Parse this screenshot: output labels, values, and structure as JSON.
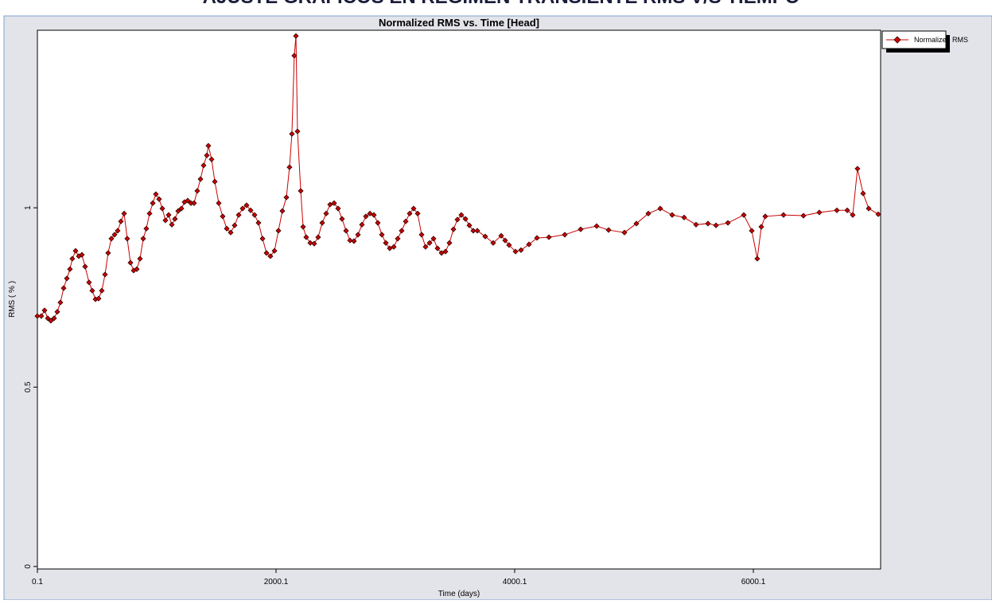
{
  "heading": "AJUSTE GRÁFICOS EN RÉGIMEN TRANSIENTE RMS V/S TIEMPO",
  "chart_data": {
    "type": "line",
    "title": "Normalized RMS vs. Time [Head]",
    "x_label": "Time (days)",
    "y_label": "RMS ( % )",
    "xlim": [
      0.1,
      7066.8
    ],
    "xticks": [
      0.1,
      2000.1,
      4000.1,
      6000.1
    ],
    "ylim": [
      -0.007,
      1.495
    ],
    "yticks": [
      0,
      0.5,
      1
    ],
    "legend": "top-right",
    "markers": true,
    "x": [
      0,
      33,
      60,
      87,
      113,
      140,
      167,
      193,
      220,
      247,
      273,
      293,
      320,
      347,
      373,
      400,
      433,
      460,
      487,
      513,
      540,
      567,
      593,
      620,
      647,
      673,
      700,
      727,
      753,
      780,
      807,
      833,
      860,
      887,
      913,
      940,
      967,
      993,
      1020,
      1047,
      1073,
      1100,
      1127,
      1153,
      1180,
      1207,
      1233,
      1260,
      1287,
      1313,
      1340,
      1367,
      1393,
      1420,
      1433,
      1460,
      1487,
      1520,
      1553,
      1587,
      1620,
      1653,
      1687,
      1720,
      1753,
      1787,
      1820,
      1853,
      1887,
      1920,
      1953,
      1987,
      2020,
      2053,
      2087,
      2113,
      2133,
      2153,
      2167,
      2180,
      2207,
      2227,
      2253,
      2287,
      2320,
      2353,
      2387,
      2420,
      2453,
      2487,
      2520,
      2553,
      2587,
      2620,
      2653,
      2687,
      2720,
      2753,
      2787,
      2820,
      2853,
      2887,
      2920,
      2953,
      2987,
      3020,
      3053,
      3087,
      3120,
      3153,
      3187,
      3220,
      3253,
      3287,
      3320,
      3353,
      3387,
      3420,
      3453,
      3487,
      3520,
      3553,
      3587,
      3620,
      3653,
      3687,
      3753,
      3820,
      3887,
      3920,
      3953,
      4007,
      4053,
      4120,
      4187,
      4287,
      4420,
      4553,
      4687,
      4787,
      4920,
      5020,
      5120,
      5220,
      5320,
      5420,
      5520,
      5620,
      5687,
      5787,
      5920,
      5987,
      6033,
      6067,
      6100,
      6253,
      6420,
      6553,
      6700,
      6787,
      6833,
      6873,
      6920,
      6967,
      7047
    ],
    "series": [
      {
        "name": "Normalized RMS",
        "color": "#cc0000",
        "values": [
          0.698,
          0.698,
          0.714,
          0.692,
          0.685,
          0.692,
          0.71,
          0.736,
          0.776,
          0.803,
          0.829,
          0.858,
          0.88,
          0.865,
          0.869,
          0.836,
          0.792,
          0.769,
          0.745,
          0.747,
          0.769,
          0.814,
          0.874,
          0.914,
          0.925,
          0.936,
          0.962,
          0.984,
          0.914,
          0.847,
          0.825,
          0.829,
          0.858,
          0.914,
          0.942,
          0.984,
          1.013,
          1.038,
          1.024,
          0.998,
          0.965,
          0.98,
          0.953,
          0.969,
          0.991,
          0.998,
          1.016,
          1.02,
          1.013,
          1.013,
          1.047,
          1.08,
          1.118,
          1.146,
          1.173,
          1.135,
          1.073,
          1.013,
          0.976,
          0.942,
          0.931,
          0.951,
          0.98,
          0.998,
          1.007,
          0.993,
          0.98,
          0.958,
          0.914,
          0.874,
          0.865,
          0.88,
          0.936,
          0.991,
          1.029,
          1.113,
          1.206,
          1.424,
          1.479,
          1.213,
          1.047,
          0.947,
          0.918,
          0.902,
          0.9,
          0.918,
          0.958,
          0.984,
          1.009,
          1.013,
          0.998,
          0.969,
          0.936,
          0.909,
          0.907,
          0.925,
          0.953,
          0.976,
          0.984,
          0.98,
          0.958,
          0.925,
          0.902,
          0.887,
          0.891,
          0.914,
          0.936,
          0.962,
          0.984,
          0.998,
          0.984,
          0.925,
          0.891,
          0.902,
          0.914,
          0.887,
          0.874,
          0.878,
          0.902,
          0.94,
          0.967,
          0.98,
          0.969,
          0.951,
          0.936,
          0.936,
          0.92,
          0.902,
          0.922,
          0.909,
          0.896,
          0.878,
          0.882,
          0.898,
          0.916,
          0.918,
          0.925,
          0.94,
          0.949,
          0.938,
          0.931,
          0.956,
          0.984,
          0.998,
          0.98,
          0.973,
          0.953,
          0.956,
          0.951,
          0.958,
          0.98,
          0.936,
          0.858,
          0.947,
          0.976,
          0.98,
          0.978,
          0.987,
          0.993,
          0.993,
          0.98,
          1.109,
          1.04,
          0.998,
          0.982
        ]
      }
    ]
  }
}
